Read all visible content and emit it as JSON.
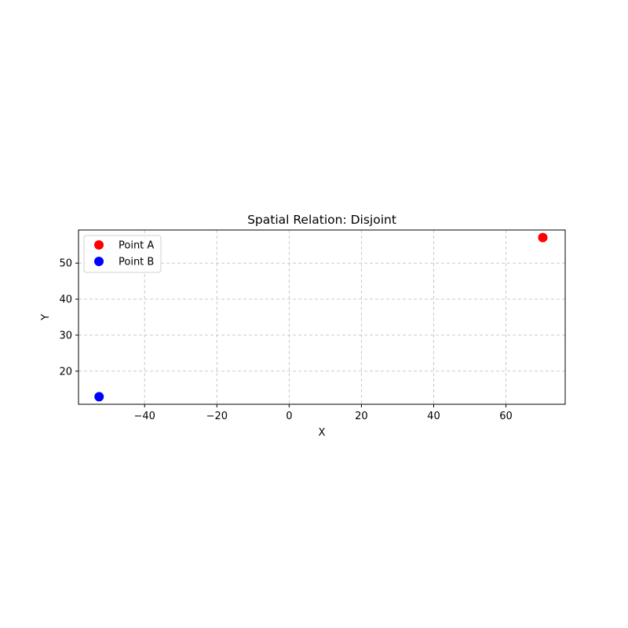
{
  "chart_data": {
    "type": "scatter",
    "title": "Spatial Relation: Disjoint",
    "xlabel": "X",
    "ylabel": "Y",
    "xlim": [
      -58.3,
      76.4
    ],
    "ylim": [
      10.8,
      59.2
    ],
    "xticks": [
      -40,
      -20,
      0,
      20,
      40,
      60
    ],
    "yticks": [
      20,
      30,
      40,
      50
    ],
    "grid": true,
    "legend_position": "top-left",
    "series": [
      {
        "name": "Point A",
        "color": "#ff0000",
        "x": [
          70.2
        ],
        "y": [
          57.1
        ]
      },
      {
        "name": "Point B",
        "color": "#0000ff",
        "x": [
          -52.6
        ],
        "y": [
          12.9
        ]
      }
    ]
  }
}
